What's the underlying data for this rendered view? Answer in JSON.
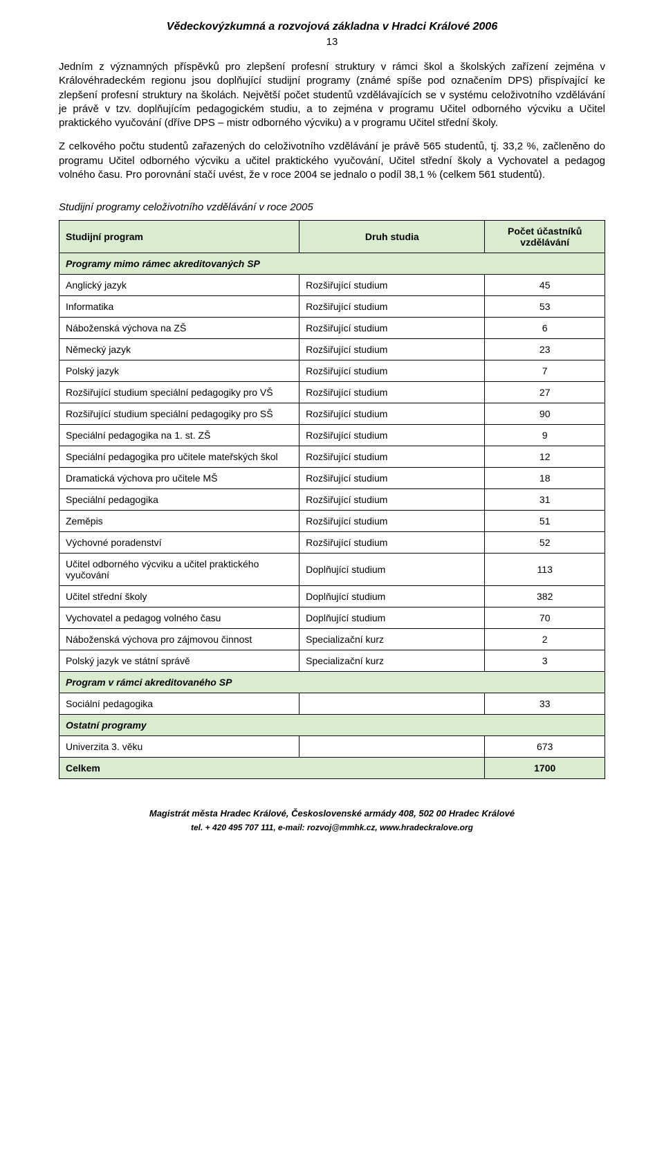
{
  "header": {
    "title": "Vědeckovýzkumná a rozvojová základna v Hradci Králové 2006",
    "page_number": "13"
  },
  "paragraphs": {
    "p1": "Jedním z významných příspěvků pro zlepšení profesní struktury v rámci škol a školských zařízení zejména v Královéhradeckém regionu jsou doplňující studijní programy (známé spíše pod označením DPS) přispívající ke zlepšení profesní struktury na školách. Největší počet studentů vzdělávajících se v systému celoživotního vzdělávání je právě v tzv. doplňujícím pedagogickém studiu, a to zejména v programu Učitel odborného výcviku a Učitel praktického vyučování (dříve DPS – mistr odborného výcviku) a v programu Učitel střední školy.",
    "p2": "Z celkového počtu studentů zařazených do celoživotního vzdělávání je právě 565 studentů, tj. 33,2 %, začleněno do programu Učitel odborného výcviku a učitel praktického vyučování, Učitel střední školy a Vychovatel a pedagog volného času. Pro porovnání stačí uvést, že v roce 2004 se jednalo o podíl 38,1 % (celkem 561 studentů).",
    "table_caption": "Studijní programy celoživotního vzdělávání v roce 2005"
  },
  "table": {
    "headers": {
      "program": "Studijní program",
      "type": "Druh studia",
      "count": "Počet účastníků vzdělávání"
    },
    "section1_label": "Programy mimo rámec akreditovaných SP",
    "rows1": [
      {
        "program": "Anglický jazyk",
        "type": "Rozšiřující studium",
        "count": "45"
      },
      {
        "program": "Informatika",
        "type": "Rozšiřující studium",
        "count": "53"
      },
      {
        "program": "Náboženská výchova na ZŠ",
        "type": "Rozšiřující studium",
        "count": "6"
      },
      {
        "program": "Německý jazyk",
        "type": "Rozšiřující studium",
        "count": "23"
      },
      {
        "program": "Polský jazyk",
        "type": "Rozšiřující studium",
        "count": "7"
      },
      {
        "program": "Rozšiřující studium speciální pedagogiky pro VŠ",
        "type": "Rozšiřující studium",
        "count": "27"
      },
      {
        "program": "Rozšiřující studium speciální pedagogiky pro SŠ",
        "type": "Rozšiřující studium",
        "count": "90"
      },
      {
        "program": "Speciální pedagogika na 1. st. ZŠ",
        "type": "Rozšiřující studium",
        "count": "9"
      },
      {
        "program": "Speciální pedagogika pro učitele mateřských škol",
        "type": "Rozšiřující studium",
        "count": "12"
      },
      {
        "program": "Dramatická výchova pro učitele MŠ",
        "type": "Rozšiřující studium",
        "count": "18"
      },
      {
        "program": "Speciální pedagogika",
        "type": "Rozšiřující studium",
        "count": "31"
      },
      {
        "program": "Zeměpis",
        "type": "Rozšiřující studium",
        "count": "51"
      },
      {
        "program": "Výchovné poradenství",
        "type": "Rozšiřující studium",
        "count": "52"
      },
      {
        "program": "Učitel odborného výcviku a učitel praktického vyučování",
        "type": "Doplňující studium",
        "count": "113"
      },
      {
        "program": "Učitel střední školy",
        "type": "Doplňující studium",
        "count": "382"
      },
      {
        "program": "Vychovatel a pedagog volného času",
        "type": "Doplňující studium",
        "count": "70"
      },
      {
        "program": "Náboženská výchova pro zájmovou činnost",
        "type": "Specializační kurz",
        "count": "2"
      },
      {
        "program": "Polský jazyk ve státní správě",
        "type": "Specializační kurz",
        "count": "3"
      }
    ],
    "section2_label": "Program v rámci akreditovaného SP",
    "rows2": [
      {
        "program": "Sociální pedagogika",
        "type": "",
        "count": "33"
      }
    ],
    "section3_label": "Ostatní programy",
    "rows3": [
      {
        "program": "Univerzita 3. věku",
        "type": "",
        "count": "673"
      }
    ],
    "total": {
      "label": "Celkem",
      "count": "1700"
    }
  },
  "footer": {
    "line1": "Magistrát města Hradec Králové, Československé armády 408, 502 00 Hradec Králové",
    "line2": "tel. + 420 495 707 111, e-mail: rozvoj@mmhk.cz, www.hradeckralove.org"
  },
  "style": {
    "header_bg": "#d9ecd0",
    "text_color": "#000000",
    "font_body_pt": 15,
    "font_table_pt": 14,
    "font_footer_pt": 13
  }
}
